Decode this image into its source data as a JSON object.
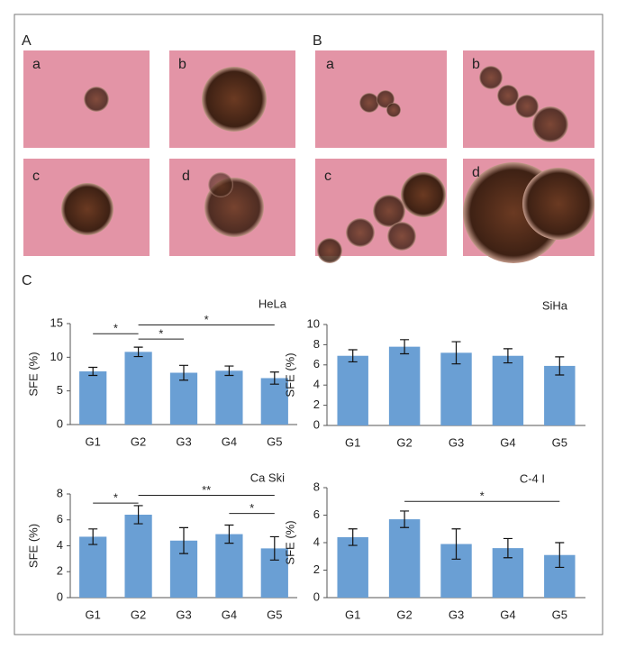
{
  "panel_a": {
    "label": "A",
    "images": [
      "a",
      "b",
      "c",
      "d"
    ]
  },
  "panel_b": {
    "label": "B",
    "images": [
      "a",
      "b",
      "c",
      "d"
    ]
  },
  "panel_c": {
    "label": "C"
  },
  "chart_data": [
    {
      "type": "bar",
      "title": "HeLa",
      "y_label": "SFE (%)",
      "categories": [
        "G1",
        "G2",
        "G3",
        "G4",
        "G5"
      ],
      "values": [
        7.9,
        10.8,
        7.7,
        8.0,
        6.9
      ],
      "errors": [
        0.6,
        0.7,
        1.1,
        0.7,
        0.9
      ],
      "color": "#6a9fd4",
      "ylim": [
        0,
        15
      ],
      "yticks": [
        0,
        5,
        10,
        15
      ],
      "annotations": [
        {
          "text": "*",
          "from": "G1",
          "to": "G2",
          "y": 13.5
        },
        {
          "text": "*",
          "from": "G2",
          "to": "G3",
          "y": 12.7
        },
        {
          "text": "*",
          "from": "G2",
          "to": "G5",
          "y": 14.8
        }
      ]
    },
    {
      "type": "bar",
      "title": "SiHa",
      "y_label": "SFE (%)",
      "categories": [
        "G1",
        "G2",
        "G3",
        "G4",
        "G5"
      ],
      "values": [
        6.9,
        7.8,
        7.2,
        6.9,
        5.9
      ],
      "errors": [
        0.6,
        0.7,
        1.1,
        0.7,
        0.9
      ],
      "color": "#6a9fd4",
      "ylim": [
        0,
        10
      ],
      "yticks": [
        0,
        2,
        4,
        6,
        8,
        10
      ],
      "annotations": []
    },
    {
      "type": "bar",
      "title": "Ca Ski",
      "y_label": "SFE (%)",
      "categories": [
        "G1",
        "G2",
        "G3",
        "G4",
        "G5"
      ],
      "values": [
        4.7,
        6.4,
        4.4,
        4.9,
        3.8
      ],
      "errors": [
        0.6,
        0.7,
        1.0,
        0.7,
        0.9
      ],
      "color": "#6a9fd4",
      "ylim": [
        0,
        8
      ],
      "yticks": [
        0,
        2,
        4,
        6,
        8
      ],
      "annotations": [
        {
          "text": "*",
          "from": "G1",
          "to": "G2",
          "y": 7.3
        },
        {
          "text": "**",
          "from": "G2",
          "to": "G5",
          "y": 7.9
        },
        {
          "text": "*",
          "from": "G4",
          "to": "G5",
          "y": 6.5
        }
      ]
    },
    {
      "type": "bar",
      "title": "C-4 I",
      "y_label": "SFE (%)",
      "categories": [
        "G1",
        "G2",
        "G3",
        "G4",
        "G5"
      ],
      "values": [
        4.4,
        5.7,
        3.9,
        3.6,
        3.1
      ],
      "errors": [
        0.6,
        0.6,
        1.1,
        0.7,
        0.9
      ],
      "color": "#6a9fd4",
      "ylim": [
        0,
        8
      ],
      "yticks": [
        0,
        2,
        4,
        6,
        8
      ],
      "annotations": [
        {
          "text": "*",
          "from": "G2",
          "to": "G5",
          "y": 7.0
        }
      ]
    }
  ]
}
